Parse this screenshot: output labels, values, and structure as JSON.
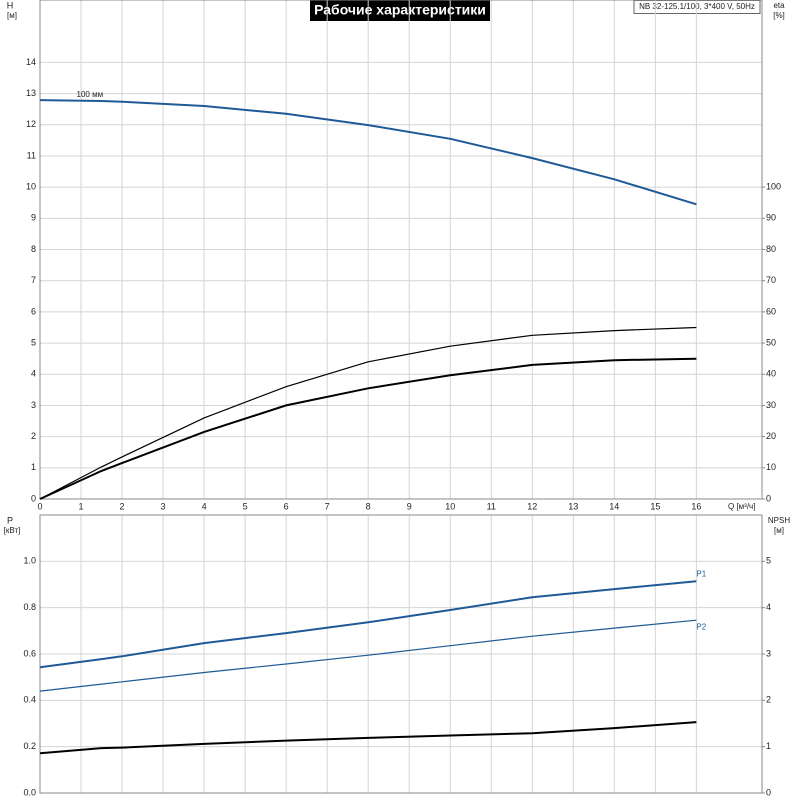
{
  "title": "Рабочие характеристики",
  "model": "NB 32-125.1/100, 3*400 V, 50Hz",
  "chart_data": [
    {
      "type": "line",
      "ylabel": "H",
      "yunit": "[м]",
      "y2label": "eta",
      "y2unit": "[%]",
      "xlabel": "Q [м³/ч]",
      "x": [
        0,
        1.5,
        2,
        4,
        6,
        8,
        10,
        12,
        14,
        16
      ],
      "xlim": [
        0,
        17.6
      ],
      "xticks": [
        0,
        1,
        2,
        3,
        4,
        5,
        6,
        7,
        8,
        9,
        10,
        11,
        12,
        13,
        14,
        15,
        16
      ],
      "ylim": [
        0,
        16
      ],
      "yticks": [
        0,
        1,
        2,
        3,
        4,
        5,
        6,
        7,
        8,
        9,
        10,
        11,
        12,
        13,
        14
      ],
      "y2lim": [
        0,
        160
      ],
      "y2ticks": [
        0,
        10,
        20,
        30,
        40,
        50,
        60,
        70,
        80,
        90,
        100
      ],
      "grid": true,
      "series": [
        {
          "name": "100 мм",
          "color": "#1f5a96",
          "values": [
            12.79,
            12.76,
            12.74,
            12.6,
            12.35,
            11.99,
            11.55,
            10.93,
            10.25,
            9.45
          ]
        },
        {
          "color": "#000000",
          "axis": "y2",
          "values": [
            0,
            10.3,
            13.5,
            26,
            36,
            44,
            49,
            52.5,
            54,
            55
          ]
        },
        {
          "color": "#000000",
          "axis": "y2",
          "values": [
            0,
            9,
            11.5,
            21.5,
            30,
            35.5,
            39.7,
            43,
            44.5,
            45
          ]
        }
      ]
    },
    {
      "type": "line",
      "ylabel": "P",
      "yunit": "[кВт]",
      "y2label": "NPSH",
      "y2unit": "[м]",
      "x": [
        0,
        1.5,
        2,
        4,
        6,
        8,
        10,
        12,
        14,
        16
      ],
      "xlim": [
        0,
        17.6
      ],
      "xticks": [
        0,
        1,
        2,
        3,
        4,
        5,
        6,
        7,
        8,
        9,
        10,
        11,
        12,
        13,
        14,
        15,
        16
      ],
      "ylim": [
        0,
        1.2
      ],
      "yticks": [
        {
          "value": 0,
          "label": "0.0"
        },
        0.2,
        0.4,
        0.6,
        0.8,
        {
          "value": 1,
          "label": "1.0"
        }
      ],
      "y2lim": [
        0,
        6
      ],
      "y2ticks": [
        0,
        1,
        2,
        3,
        4,
        5
      ],
      "grid": true,
      "series": [
        {
          "name": "P1",
          "color": "#1f5a96",
          "values": [
            0.543,
            0.578,
            0.59,
            0.647,
            0.69,
            0.737,
            0.79,
            0.845,
            0.88,
            0.914
          ]
        },
        {
          "name": "P2",
          "color": "#1f5a96",
          "values": [
            0.44,
            0.47,
            0.48,
            0.52,
            0.557,
            0.595,
            0.636,
            0.677,
            0.712,
            0.746
          ]
        },
        {
          "color": "#000000",
          "axis": "y2",
          "values": [
            0.86,
            0.97,
            0.98,
            1.06,
            1.13,
            1.19,
            1.24,
            1.29,
            1.4,
            1.53
          ]
        }
      ]
    }
  ]
}
